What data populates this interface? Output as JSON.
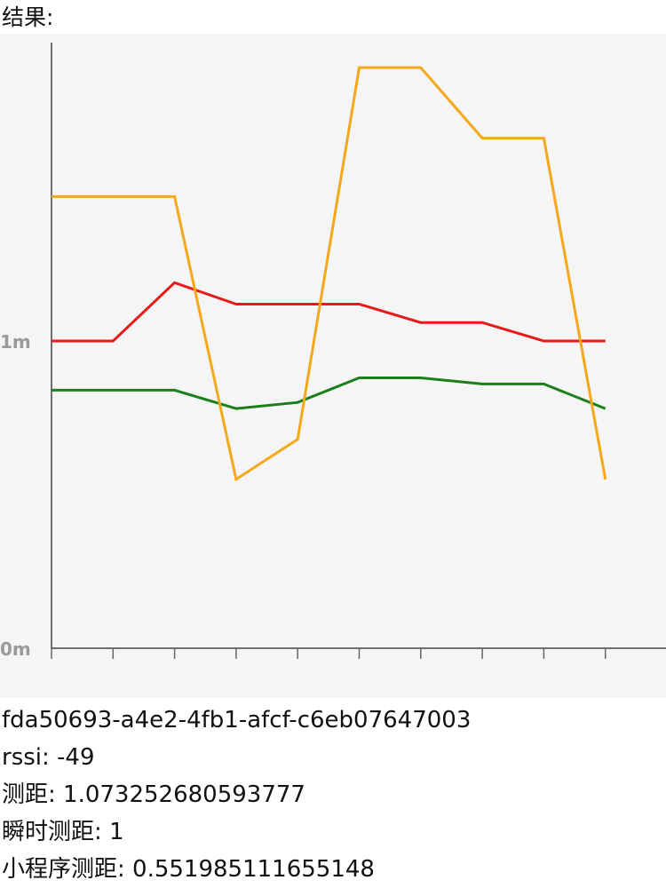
{
  "header": {
    "title": "结果:"
  },
  "chart_data": {
    "type": "line",
    "x": [
      0,
      1,
      2,
      3,
      4,
      5,
      6,
      7,
      8,
      9
    ],
    "ylim": [
      0,
      1.94
    ],
    "yticks": [
      {
        "value": 0,
        "label": "0m"
      },
      {
        "value": 1,
        "label": "1m"
      }
    ],
    "grid": false,
    "series": [
      {
        "color": "#e81919",
        "values": [
          1.0,
          1.0,
          1.19,
          1.12,
          1.12,
          1.12,
          1.06,
          1.06,
          1.0,
          1.0
        ]
      },
      {
        "color": "#1a7f1a",
        "values": [
          0.84,
          0.84,
          0.84,
          0.78,
          0.8,
          0.88,
          0.88,
          0.86,
          0.86,
          0.78
        ]
      },
      {
        "color": "#f5a81a",
        "values": [
          1.47,
          1.47,
          1.47,
          0.55,
          0.68,
          1.89,
          1.89,
          1.66,
          1.66,
          0.55
        ]
      }
    ]
  },
  "info": {
    "uuid": "fda50693-a4e2-4fb1-afcf-c6eb07647003",
    "rssi": "rssi: -49",
    "distance": "测距: 1.073252680593777",
    "instant_distance": "瞬时测距: 1",
    "miniprogram_distance": "小程序测距: 0.551985111655148"
  }
}
